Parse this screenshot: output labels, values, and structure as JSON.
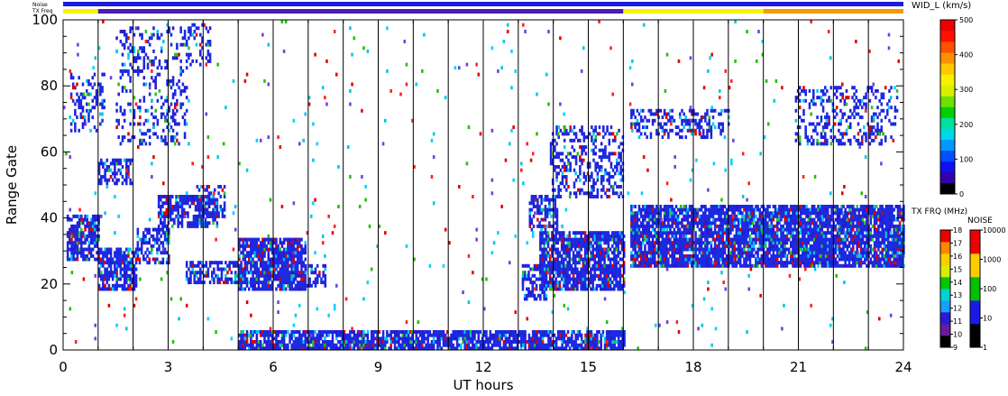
{
  "chart_data": {
    "type": "heatmap",
    "xlabel": "UT hours",
    "ylabel": "Range Gate",
    "x_ticks": [
      0,
      3,
      6,
      9,
      12,
      15,
      18,
      21,
      24
    ],
    "y_ticks": [
      0,
      20,
      40,
      60,
      80,
      100
    ],
    "xlim": [
      0,
      24
    ],
    "ylim": [
      0,
      100
    ],
    "grid": "vertical lines at each hour",
    "top_strips": [
      {
        "label": "Noise",
        "segments": [
          {
            "x0": 0,
            "x1": 24,
            "color": "#1b1be0"
          }
        ]
      },
      {
        "label": "TX Freq",
        "segments": [
          {
            "x0": 0,
            "x1": 1,
            "color": "#f7f400"
          },
          {
            "x0": 1,
            "x1": 16,
            "color": "#4b1cb3"
          },
          {
            "x0": 16,
            "x1": 20,
            "color": "#f7f400"
          },
          {
            "x0": 20,
            "x1": 24,
            "color": "#f59a00"
          }
        ]
      }
    ],
    "dominant_color": "#1c2ae0",
    "data_regions": [
      {
        "x0": 0.1,
        "x1": 1.0,
        "y0": 27,
        "y1": 41,
        "density": 0.75
      },
      {
        "x0": 1.0,
        "x1": 2.1,
        "y0": 18,
        "y1": 31,
        "density": 0.75
      },
      {
        "x0": 2.1,
        "x1": 3.0,
        "y0": 26,
        "y1": 37,
        "density": 0.55
      },
      {
        "x0": 2.7,
        "x1": 4.4,
        "y0": 37,
        "y1": 47,
        "density": 0.7
      },
      {
        "x0": 3.8,
        "x1": 4.6,
        "y0": 40,
        "y1": 50,
        "density": 0.5
      },
      {
        "x0": 1.0,
        "x1": 2.0,
        "y0": 50,
        "y1": 58,
        "density": 0.45
      },
      {
        "x0": 0.2,
        "x1": 1.2,
        "y0": 66,
        "y1": 84,
        "density": 0.3
      },
      {
        "x0": 1.5,
        "x1": 3.5,
        "y0": 62,
        "y1": 98,
        "density": 0.22
      },
      {
        "x0": 3.5,
        "x1": 4.2,
        "y0": 86,
        "y1": 99,
        "density": 0.25
      },
      {
        "x0": 3.5,
        "x1": 5.1,
        "y0": 20,
        "y1": 27,
        "density": 0.6
      },
      {
        "x0": 5.0,
        "x1": 6.9,
        "y0": 18,
        "y1": 34,
        "density": 0.85
      },
      {
        "x0": 6.9,
        "x1": 7.5,
        "y0": 19,
        "y1": 26,
        "density": 0.55
      },
      {
        "x0": 5.0,
        "x1": 16.0,
        "y0": 0,
        "y1": 6,
        "density": 0.8
      },
      {
        "x0": 13.6,
        "x1": 16.0,
        "y0": 18,
        "y1": 36,
        "density": 0.8
      },
      {
        "x0": 13.3,
        "x1": 14.1,
        "y0": 36,
        "y1": 47,
        "density": 0.55
      },
      {
        "x0": 13.1,
        "x1": 13.8,
        "y0": 15,
        "y1": 26,
        "density": 0.6
      },
      {
        "x0": 13.9,
        "x1": 16.0,
        "y0": 46,
        "y1": 68,
        "density": 0.35
      },
      {
        "x0": 16.2,
        "x1": 24.0,
        "y0": 25,
        "y1": 44,
        "density": 0.85
      },
      {
        "x0": 16.2,
        "x1": 19.0,
        "y0": 64,
        "y1": 73,
        "density": 0.35
      },
      {
        "x0": 20.9,
        "x1": 23.8,
        "y0": 62,
        "y1": 80,
        "density": 0.3
      },
      {
        "x0": 0.0,
        "x1": 24.0,
        "y0": 0,
        "y1": 100,
        "density": 0.012
      }
    ]
  },
  "labels": {
    "noise_strip": "Noise",
    "txfreq_strip": "TX Freq",
    "wid_title": "WID_L (km/s)",
    "txfrq_title": "TX FRQ (MHz)",
    "noise_title": "NOISE"
  },
  "colorbars": {
    "wid": {
      "ticks": [
        "500",
        "400",
        "300",
        "200",
        "100",
        "0"
      ],
      "colors": [
        "#000000",
        "#3300aa",
        "#1010ee",
        "#0050ff",
        "#0099ff",
        "#00d8e8",
        "#00e0a0",
        "#00d000",
        "#70e000",
        "#d8f000",
        "#f8f000",
        "#ffc800",
        "#ff9000",
        "#ff5000",
        "#ff1000",
        "#ee0000"
      ]
    },
    "txfrq": {
      "ticks": [
        "18",
        "17",
        "16",
        "15",
        "14",
        "13",
        "12",
        "11",
        "10",
        "9"
      ],
      "colors": [
        "#000000",
        "#6a1a9a",
        "#2a1ad8",
        "#18a0ff",
        "#00d4d4",
        "#00c800",
        "#d8f000",
        "#f8d000",
        "#ff8800",
        "#ee0000"
      ]
    },
    "noise": {
      "ticks": [
        "10000",
        "1000",
        "100",
        "10",
        "1"
      ],
      "colors": [
        "#000000",
        "#1a1ae8",
        "#00c000",
        "#ffcc00",
        "#ee0000"
      ]
    }
  }
}
